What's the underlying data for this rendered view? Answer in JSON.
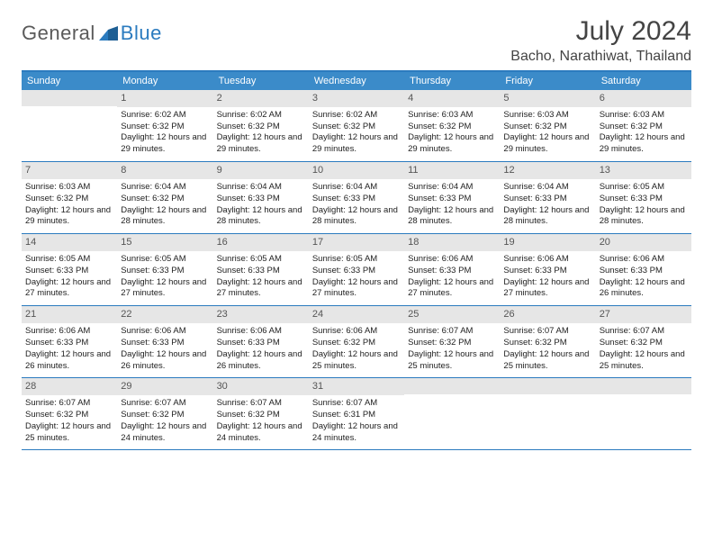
{
  "logo": {
    "general": "General",
    "blue": "Blue"
  },
  "header": {
    "title": "July 2024",
    "location": "Bacho, Narathiwat, Thailand"
  },
  "colors": {
    "accent": "#2b7bbf",
    "header_bg": "#3b8bc9",
    "daynum_bg": "#e6e6e6",
    "text": "#333333",
    "background": "#ffffff"
  },
  "calendar": {
    "type": "table",
    "weekdays": [
      "Sunday",
      "Monday",
      "Tuesday",
      "Wednesday",
      "Thursday",
      "Friday",
      "Saturday"
    ],
    "label_sunrise": "Sunrise:",
    "label_sunset": "Sunset:",
    "label_daylight": "Daylight:",
    "weeks": [
      [
        {
          "num": "",
          "empty": true
        },
        {
          "num": "1",
          "sunrise": "6:02 AM",
          "sunset": "6:32 PM",
          "daylight": "12 hours and 29 minutes."
        },
        {
          "num": "2",
          "sunrise": "6:02 AM",
          "sunset": "6:32 PM",
          "daylight": "12 hours and 29 minutes."
        },
        {
          "num": "3",
          "sunrise": "6:02 AM",
          "sunset": "6:32 PM",
          "daylight": "12 hours and 29 minutes."
        },
        {
          "num": "4",
          "sunrise": "6:03 AM",
          "sunset": "6:32 PM",
          "daylight": "12 hours and 29 minutes."
        },
        {
          "num": "5",
          "sunrise": "6:03 AM",
          "sunset": "6:32 PM",
          "daylight": "12 hours and 29 minutes."
        },
        {
          "num": "6",
          "sunrise": "6:03 AM",
          "sunset": "6:32 PM",
          "daylight": "12 hours and 29 minutes."
        }
      ],
      [
        {
          "num": "7",
          "sunrise": "6:03 AM",
          "sunset": "6:32 PM",
          "daylight": "12 hours and 29 minutes."
        },
        {
          "num": "8",
          "sunrise": "6:04 AM",
          "sunset": "6:32 PM",
          "daylight": "12 hours and 28 minutes."
        },
        {
          "num": "9",
          "sunrise": "6:04 AM",
          "sunset": "6:33 PM",
          "daylight": "12 hours and 28 minutes."
        },
        {
          "num": "10",
          "sunrise": "6:04 AM",
          "sunset": "6:33 PM",
          "daylight": "12 hours and 28 minutes."
        },
        {
          "num": "11",
          "sunrise": "6:04 AM",
          "sunset": "6:33 PM",
          "daylight": "12 hours and 28 minutes."
        },
        {
          "num": "12",
          "sunrise": "6:04 AM",
          "sunset": "6:33 PM",
          "daylight": "12 hours and 28 minutes."
        },
        {
          "num": "13",
          "sunrise": "6:05 AM",
          "sunset": "6:33 PM",
          "daylight": "12 hours and 28 minutes."
        }
      ],
      [
        {
          "num": "14",
          "sunrise": "6:05 AM",
          "sunset": "6:33 PM",
          "daylight": "12 hours and 27 minutes."
        },
        {
          "num": "15",
          "sunrise": "6:05 AM",
          "sunset": "6:33 PM",
          "daylight": "12 hours and 27 minutes."
        },
        {
          "num": "16",
          "sunrise": "6:05 AM",
          "sunset": "6:33 PM",
          "daylight": "12 hours and 27 minutes."
        },
        {
          "num": "17",
          "sunrise": "6:05 AM",
          "sunset": "6:33 PM",
          "daylight": "12 hours and 27 minutes."
        },
        {
          "num": "18",
          "sunrise": "6:06 AM",
          "sunset": "6:33 PM",
          "daylight": "12 hours and 27 minutes."
        },
        {
          "num": "19",
          "sunrise": "6:06 AM",
          "sunset": "6:33 PM",
          "daylight": "12 hours and 27 minutes."
        },
        {
          "num": "20",
          "sunrise": "6:06 AM",
          "sunset": "6:33 PM",
          "daylight": "12 hours and 26 minutes."
        }
      ],
      [
        {
          "num": "21",
          "sunrise": "6:06 AM",
          "sunset": "6:33 PM",
          "daylight": "12 hours and 26 minutes."
        },
        {
          "num": "22",
          "sunrise": "6:06 AM",
          "sunset": "6:33 PM",
          "daylight": "12 hours and 26 minutes."
        },
        {
          "num": "23",
          "sunrise": "6:06 AM",
          "sunset": "6:33 PM",
          "daylight": "12 hours and 26 minutes."
        },
        {
          "num": "24",
          "sunrise": "6:06 AM",
          "sunset": "6:32 PM",
          "daylight": "12 hours and 25 minutes."
        },
        {
          "num": "25",
          "sunrise": "6:07 AM",
          "sunset": "6:32 PM",
          "daylight": "12 hours and 25 minutes."
        },
        {
          "num": "26",
          "sunrise": "6:07 AM",
          "sunset": "6:32 PM",
          "daylight": "12 hours and 25 minutes."
        },
        {
          "num": "27",
          "sunrise": "6:07 AM",
          "sunset": "6:32 PM",
          "daylight": "12 hours and 25 minutes."
        }
      ],
      [
        {
          "num": "28",
          "sunrise": "6:07 AM",
          "sunset": "6:32 PM",
          "daylight": "12 hours and 25 minutes."
        },
        {
          "num": "29",
          "sunrise": "6:07 AM",
          "sunset": "6:32 PM",
          "daylight": "12 hours and 24 minutes."
        },
        {
          "num": "30",
          "sunrise": "6:07 AM",
          "sunset": "6:32 PM",
          "daylight": "12 hours and 24 minutes."
        },
        {
          "num": "31",
          "sunrise": "6:07 AM",
          "sunset": "6:31 PM",
          "daylight": "12 hours and 24 minutes."
        },
        {
          "num": "",
          "empty": true
        },
        {
          "num": "",
          "empty": true
        },
        {
          "num": "",
          "empty": true
        }
      ]
    ]
  }
}
